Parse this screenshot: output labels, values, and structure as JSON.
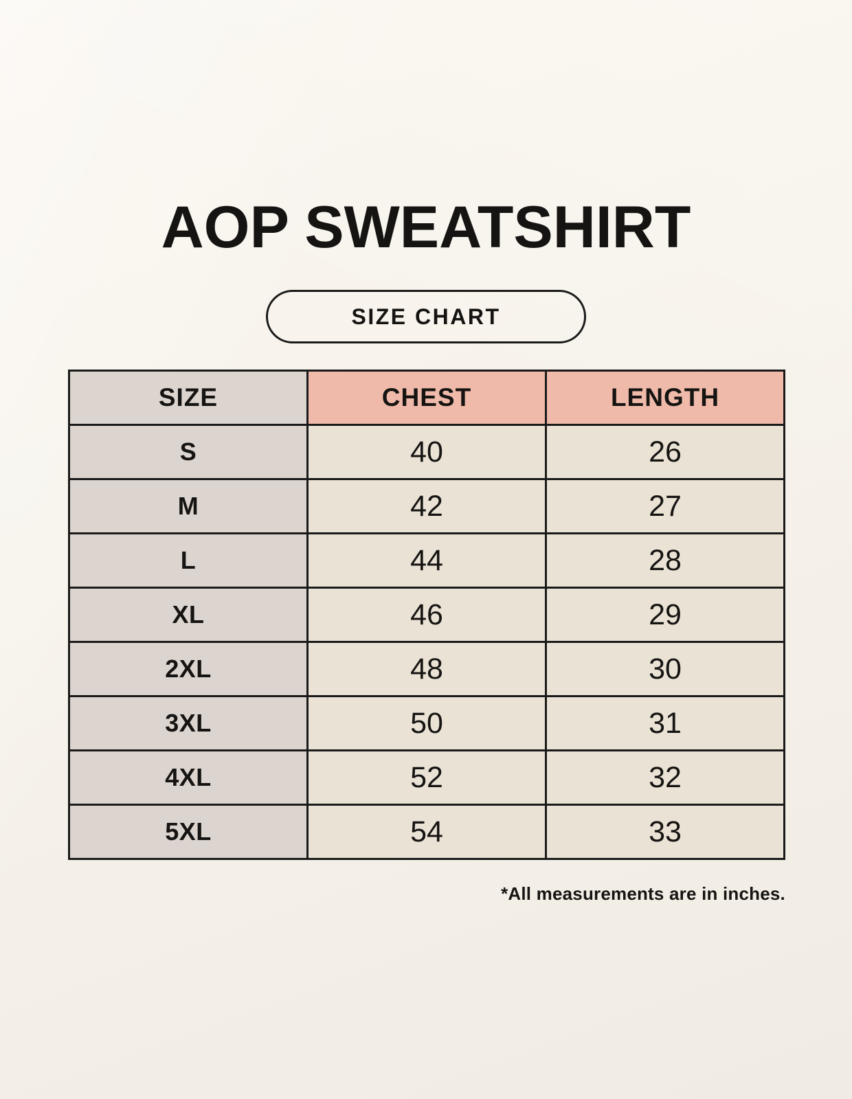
{
  "page": {
    "title": "AOP SWEATSHIRT",
    "badge_label": "SIZE CHART",
    "footnote": "*All measurements are in inches."
  },
  "chart_data": {
    "type": "table",
    "title": "AOP SWEATSHIRT SIZE CHART",
    "units": "inches",
    "columns": [
      "SIZE",
      "CHEST",
      "LENGTH"
    ],
    "rows": [
      [
        "S",
        "40",
        "26"
      ],
      [
        "M",
        "42",
        "27"
      ],
      [
        "L",
        "44",
        "28"
      ],
      [
        "XL",
        "46",
        "29"
      ],
      [
        "2XL",
        "48",
        "30"
      ],
      [
        "3XL",
        "50",
        "31"
      ],
      [
        "4XL",
        "52",
        "32"
      ],
      [
        "5XL",
        "54",
        "33"
      ]
    ]
  },
  "colors": {
    "background": "#f6f2ea",
    "size_column_bg": "#dbd4cf",
    "measure_header_bg": "#efbaa9",
    "value_cell_bg": "#e9e2d5",
    "border": "#1a1a1a",
    "text": "#161412"
  }
}
